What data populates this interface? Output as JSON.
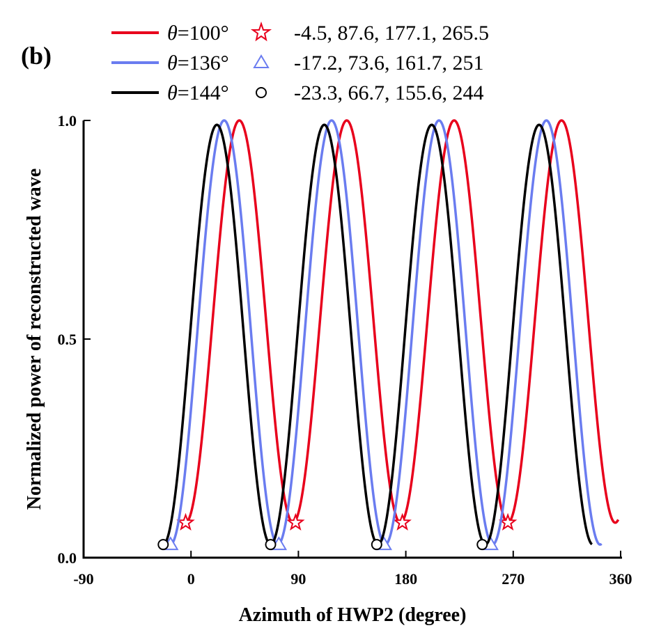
{
  "panel_label": "(b)",
  "colors": {
    "red": "#e8001c",
    "blue": "#6a7cf0",
    "black": "#000000"
  },
  "chart_data": {
    "type": "line",
    "xlabel": "Azimuth of HWP2 (degree)",
    "ylabel": "Normalized power of reconstructed wave",
    "xlim": [
      -90,
      360
    ],
    "ylim": [
      0,
      1
    ],
    "x_ticks": [
      -90,
      0,
      90,
      180,
      270,
      360
    ],
    "y_ticks": [
      0.0,
      0.5,
      1.0
    ],
    "x_tick_labels": [
      "-90",
      "0",
      "90",
      "180",
      "270",
      "360"
    ],
    "y_tick_labels": [
      "0.0",
      "0.5",
      "1.0"
    ],
    "grid": false,
    "legend_position": "top",
    "series": [
      {
        "key": "red",
        "theta": "=100°",
        "minima_text": "-4.5, 87.6, 177.1, 265.5",
        "marker": "star",
        "color": "#e8001c",
        "x_range": [
          -5,
          358
        ],
        "minima": [
          -4.5,
          87.6,
          177.1,
          265.5
        ],
        "min_value": 0.08,
        "max_value": 1.0
      },
      {
        "key": "blue",
        "theta": "=136°",
        "minima_text": "-17.2, 73.6, 161.7, 251",
        "marker": "triangle",
        "color": "#6a7cf0",
        "x_range": [
          -20,
          344
        ],
        "minima": [
          -17.2,
          73.6,
          161.7,
          251
        ],
        "min_value": 0.03,
        "max_value": 1.0
      },
      {
        "key": "black",
        "theta": "=144°",
        "minima_text": "-23.3, 66.7, 155.6, 244",
        "marker": "circle",
        "color": "#000000",
        "x_range": [
          -23.3,
          336
        ],
        "minima": [
          -23.3,
          66.7,
          155.6,
          244
        ],
        "min_value": 0.03,
        "max_value": 0.99
      }
    ]
  }
}
